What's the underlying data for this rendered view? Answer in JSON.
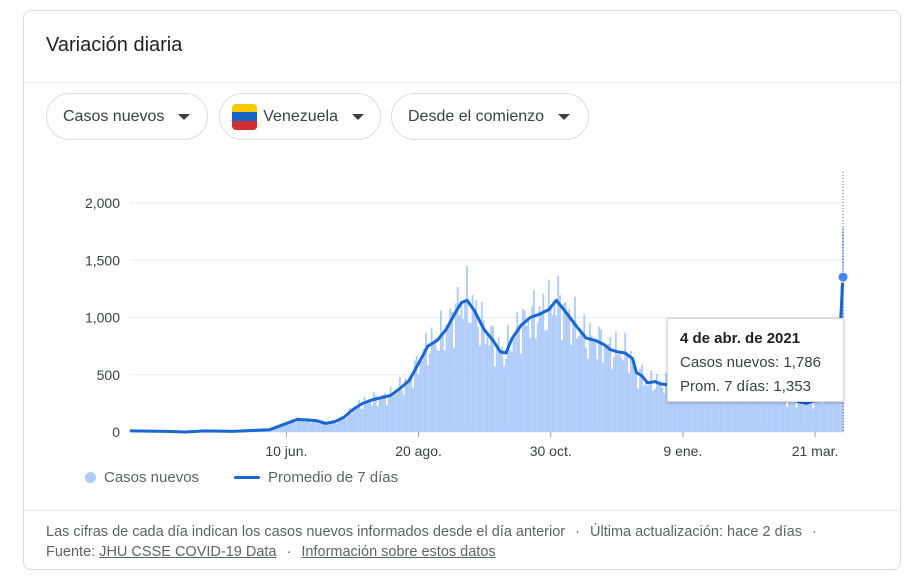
{
  "card": {
    "title": "Variación diaria"
  },
  "filters": {
    "metric": "Casos nuevos",
    "country": "Venezuela",
    "range": "Desde el comienzo"
  },
  "icons": {
    "caret": "caret-down-icon",
    "flag": "venezuela-flag-icon"
  },
  "colors": {
    "bar": "#aecbfa",
    "line": "#1967d2",
    "grid": "#e8eaed",
    "text": "#3c4043"
  },
  "tooltip": {
    "date": "4 de abr. de 2021",
    "cases_label": "Casos nuevos: 1,786",
    "avg_label": "Prom. 7 días: 1,353"
  },
  "legend": {
    "bars": "Casos nuevos",
    "line": "Promedio de 7 días"
  },
  "footer": {
    "text1": "Las cifras de cada día indican los casos nuevos informados desde el día anterior",
    "sep": "·",
    "updated": "Última actualización: hace 2 días",
    "source_label": "Fuente:",
    "source_link": "JHU CSSE COVID-19 Data",
    "info_link": "Información sobre estos datos"
  },
  "chart_data": {
    "type": "bar",
    "title": "",
    "ylim": [
      0,
      2250
    ],
    "yticks": [
      0,
      500,
      1000,
      1500,
      2000
    ],
    "ytick_labels": [
      "0",
      "500",
      "1,000",
      "1,500",
      "2,000"
    ],
    "xticks": [
      {
        "day": 84,
        "label": "10 jun."
      },
      {
        "day": 155,
        "label": "20 ago."
      },
      {
        "day": 226,
        "label": "30 oct."
      },
      {
        "day": 297,
        "label": "9 ene."
      },
      {
        "day": 368,
        "label": "21 mar."
      }
    ],
    "xlim": [
      0,
      383
    ],
    "series": [
      {
        "name": "Casos nuevos",
        "type": "bar"
      },
      {
        "name": "Promedio de 7 días",
        "type": "line",
        "points": [
          [
            0,
            10
          ],
          [
            20,
            5
          ],
          [
            30,
            0
          ],
          [
            40,
            10
          ],
          [
            55,
            5
          ],
          [
            75,
            20
          ],
          [
            85,
            80
          ],
          [
            90,
            110
          ],
          [
            100,
            100
          ],
          [
            105,
            75
          ],
          [
            110,
            90
          ],
          [
            115,
            130
          ],
          [
            120,
            200
          ],
          [
            125,
            250
          ],
          [
            130,
            280
          ],
          [
            140,
            320
          ],
          [
            145,
            380
          ],
          [
            150,
            450
          ],
          [
            155,
            600
          ],
          [
            160,
            750
          ],
          [
            165,
            800
          ],
          [
            170,
            900
          ],
          [
            175,
            1050
          ],
          [
            178,
            1130
          ],
          [
            181,
            1150
          ],
          [
            185,
            1060
          ],
          [
            190,
            900
          ],
          [
            195,
            800
          ],
          [
            199,
            700
          ],
          [
            202,
            690
          ],
          [
            205,
            810
          ],
          [
            210,
            930
          ],
          [
            215,
            1000
          ],
          [
            220,
            1030
          ],
          [
            225,
            1070
          ],
          [
            229,
            1150
          ],
          [
            234,
            1050
          ],
          [
            240,
            920
          ],
          [
            245,
            820
          ],
          [
            250,
            800
          ],
          [
            255,
            760
          ],
          [
            258,
            720
          ],
          [
            262,
            700
          ],
          [
            266,
            690
          ],
          [
            270,
            640
          ],
          [
            272,
            520
          ],
          [
            275,
            490
          ],
          [
            278,
            430
          ],
          [
            282,
            440
          ],
          [
            285,
            420
          ],
          [
            290,
            410
          ],
          [
            295,
            400
          ],
          [
            300,
            360
          ],
          [
            305,
            330
          ],
          [
            310,
            360
          ],
          [
            315,
            380
          ],
          [
            320,
            360
          ],
          [
            325,
            340
          ],
          [
            330,
            360
          ],
          [
            335,
            400
          ],
          [
            338,
            470
          ],
          [
            342,
            390
          ],
          [
            346,
            350
          ],
          [
            350,
            300
          ],
          [
            355,
            290
          ],
          [
            360,
            260
          ],
          [
            363,
            250
          ],
          [
            367,
            270
          ],
          [
            370,
            300
          ],
          [
            375,
            350
          ],
          [
            380,
            450
          ],
          [
            383,
            1353
          ]
        ]
      }
    ],
    "highlight": {
      "day": 383,
      "cases": 1786,
      "avg": 1353
    }
  }
}
